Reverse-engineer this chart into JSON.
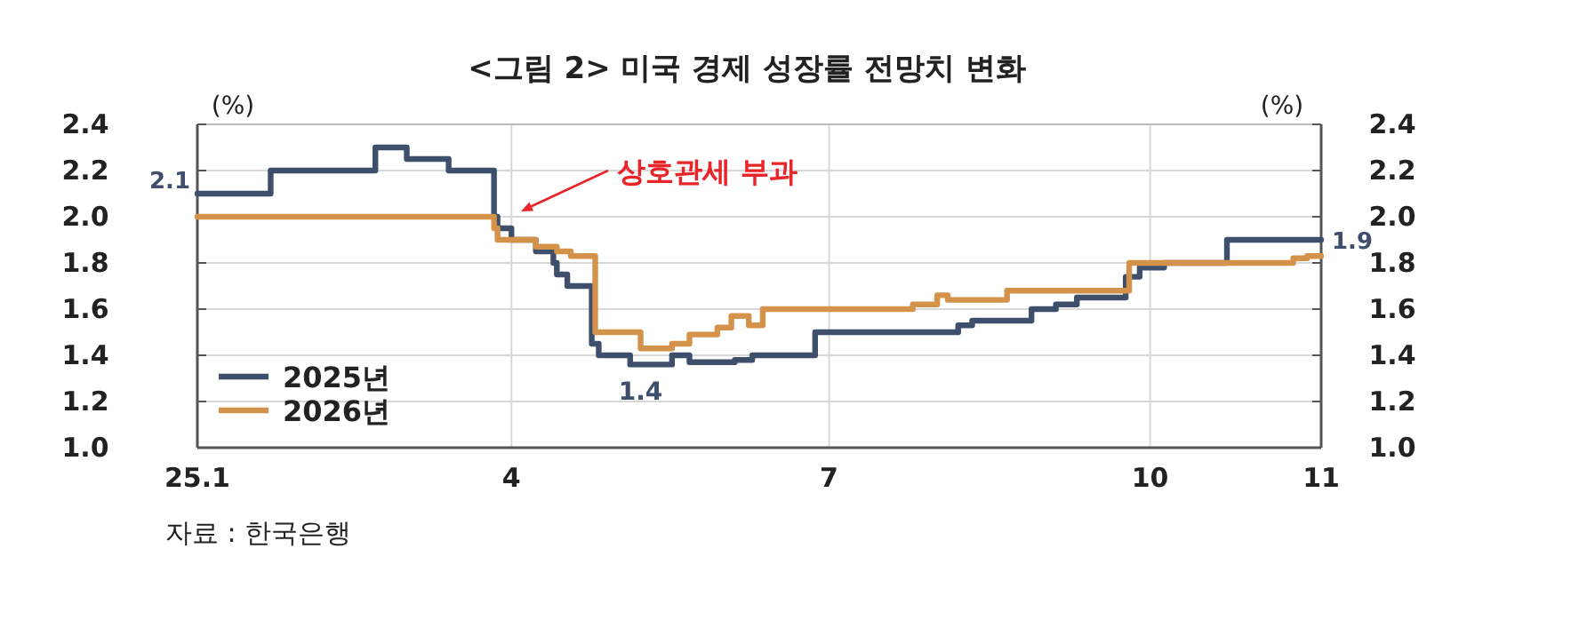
{
  "chart_data": {
    "type": "step",
    "title": "<그림 2> 미국 경제 성장률 전망치 변화",
    "ylabel": "(%)",
    "y2label": "(%)",
    "xlim": [
      "2025-01-01",
      "2025-11-19"
    ],
    "xticks": [
      {
        "value": "2025-01-01",
        "label": "25.1"
      },
      {
        "value": "2025-04-01",
        "label": "4"
      },
      {
        "value": "2025-07-01",
        "label": "7"
      },
      {
        "value": "2025-10-01",
        "label": "10"
      },
      {
        "value": "2025-11-19",
        "label": "11"
      }
    ],
    "ylim": [
      1.0,
      2.4
    ],
    "yticks": [
      {
        "value": 1.0,
        "label": "1.0"
      },
      1.2,
      1.4,
      1.6,
      1.8,
      {
        "value": 2.0,
        "label": "2.0"
      },
      2.2,
      2.4
    ],
    "y2lim": [
      1.0,
      2.4
    ],
    "y2ticks": [
      {
        "value": 1.0,
        "label": "1.0"
      },
      1.2,
      1.4,
      1.6,
      1.8,
      {
        "value": 2.0,
        "label": "2.0"
      },
      2.2,
      2.4
    ],
    "grid": true,
    "legend": "bottom left",
    "series": [
      {
        "name": "2025년",
        "color": "#3d4f6b",
        "x": [
          "2025-01-01",
          "2025-01-22",
          "2025-02-21",
          "2025-03-02",
          "2025-03-14",
          "2025-03-27",
          "2025-03-28",
          "2025-04-01",
          "2025-04-08",
          "2025-04-13",
          "2025-04-14",
          "2025-04-17",
          "2025-04-24",
          "2025-04-26",
          "2025-05-05",
          "2025-05-17",
          "2025-05-22",
          "2025-06-04",
          "2025-06-09",
          "2025-06-27",
          "2025-08-07",
          "2025-08-11",
          "2025-08-28",
          "2025-09-04",
          "2025-09-10",
          "2025-09-24",
          "2025-09-28",
          "2025-10-05",
          "2025-10-23",
          "2025-11-19"
        ],
        "values": [
          2.1,
          2.2,
          2.3,
          2.25,
          2.2,
          2.0,
          1.95,
          1.9,
          1.85,
          1.8,
          1.75,
          1.7,
          1.45,
          1.4,
          1.36,
          1.4,
          1.37,
          1.38,
          1.4,
          1.5,
          1.53,
          1.55,
          1.6,
          1.62,
          1.65,
          1.74,
          1.78,
          1.8,
          1.9,
          1.9
        ]
      },
      {
        "name": "2026년",
        "color": "#d4924a",
        "x": [
          "2025-01-01",
          "2025-03-27",
          "2025-03-28",
          "2025-04-08",
          "2025-04-14",
          "2025-04-18",
          "2025-04-25",
          "2025-05-08",
          "2025-05-17",
          "2025-05-22",
          "2025-05-30",
          "2025-06-03",
          "2025-06-08",
          "2025-06-12",
          "2025-07-25",
          "2025-08-01",
          "2025-08-04",
          "2025-08-21",
          "2025-09-25",
          "2025-11-11",
          "2025-11-15",
          "2025-11-19"
        ],
        "values": [
          2.0,
          1.95,
          1.9,
          1.87,
          1.85,
          1.83,
          1.5,
          1.43,
          1.45,
          1.49,
          1.52,
          1.57,
          1.53,
          1.6,
          1.62,
          1.66,
          1.64,
          1.68,
          1.8,
          1.82,
          1.83,
          1.83
        ]
      }
    ],
    "annotations": [
      {
        "text": "2.1",
        "x": "2025-01-01",
        "y": 2.1
      },
      {
        "text": "1.4",
        "x": "2025-05-08",
        "y": 1.36
      },
      {
        "text": "1.9",
        "x": "2025-11-19",
        "y": 1.9
      },
      "상호관세 부과",
      "자료 : 한국은행"
    ]
  }
}
